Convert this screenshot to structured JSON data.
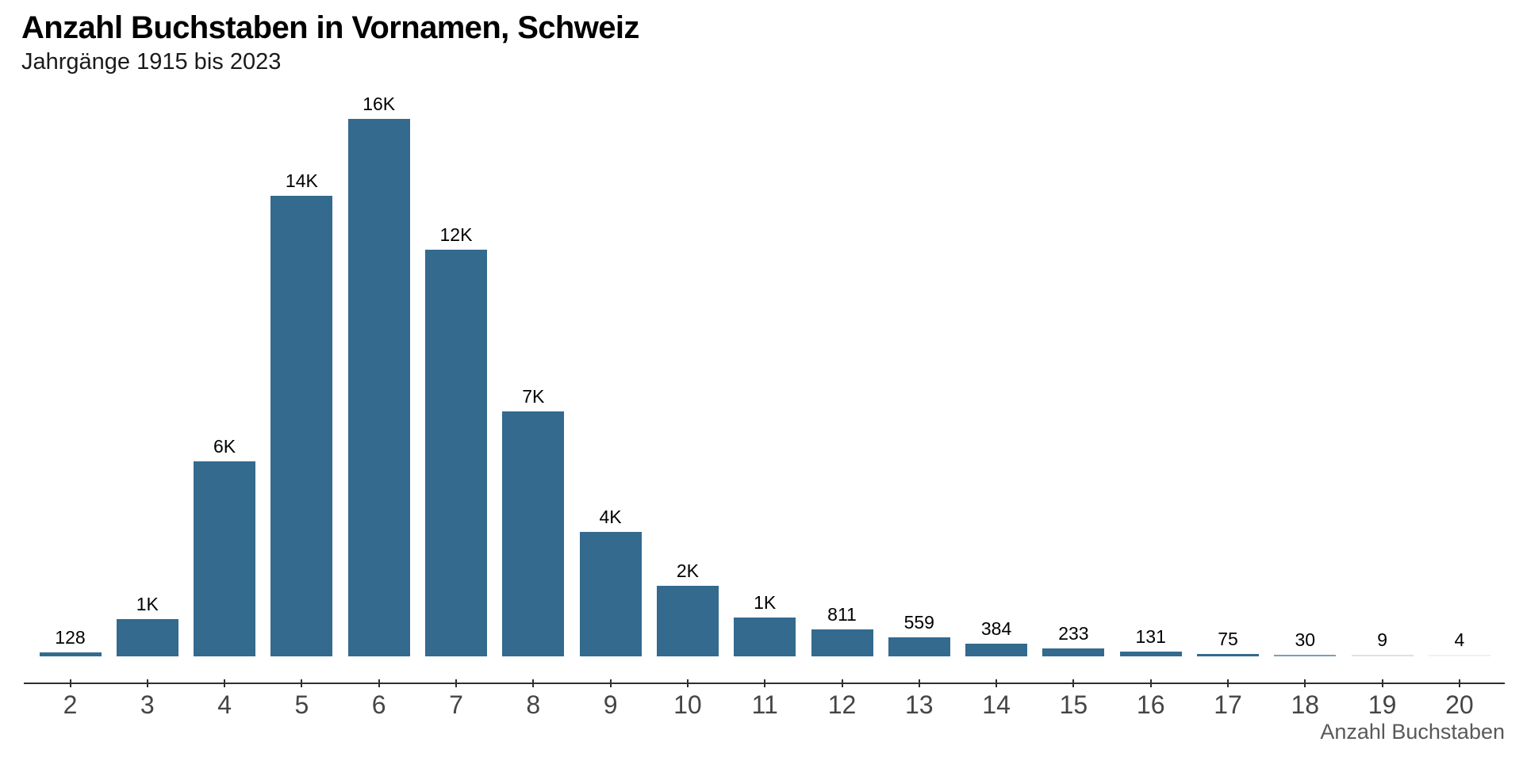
{
  "page": {
    "background": "#ffffff"
  },
  "header": {
    "title": "Anzahl Buchstaben in Vornamen, Schweiz",
    "subtitle": "Jahrgänge 1915 bis 2023"
  },
  "chart_data": {
    "type": "bar",
    "title": "Anzahl Buchstaben in Vornamen, Schweiz",
    "subtitle": "Jahrgänge 1915 bis 2023",
    "xlabel": "Anzahl Buchstaben",
    "ylabel": "",
    "categories": [
      "2",
      "3",
      "4",
      "5",
      "6",
      "7",
      "8",
      "9",
      "10",
      "11",
      "12",
      "13",
      "14",
      "15",
      "16",
      "17",
      "18",
      "19",
      "20"
    ],
    "values": [
      128,
      1100,
      5800,
      13700,
      16000,
      12100,
      7300,
      3700,
      2100,
      1150,
      811,
      559,
      384,
      233,
      131,
      75,
      30,
      9,
      4
    ],
    "bar_labels": [
      "128",
      "1K",
      "6K",
      "14K",
      "16K",
      "12K",
      "7K",
      "4K",
      "2K",
      "1K",
      "811",
      "559",
      "384",
      "233",
      "131",
      "75",
      "30",
      "9",
      "4"
    ],
    "ylim": [
      0,
      16000
    ],
    "grid": false,
    "legend": "none",
    "bar_color": "#336a8e"
  },
  "colors": {
    "background": "#ffffff",
    "bar": "#336a8e",
    "title_text": "#000000",
    "subtitle_text": "#1a1a1a",
    "value_label_text": "#000000",
    "axis_line": "#2f2f2f",
    "tick_label_text": "#454545",
    "axis_title_text": "#595959"
  }
}
